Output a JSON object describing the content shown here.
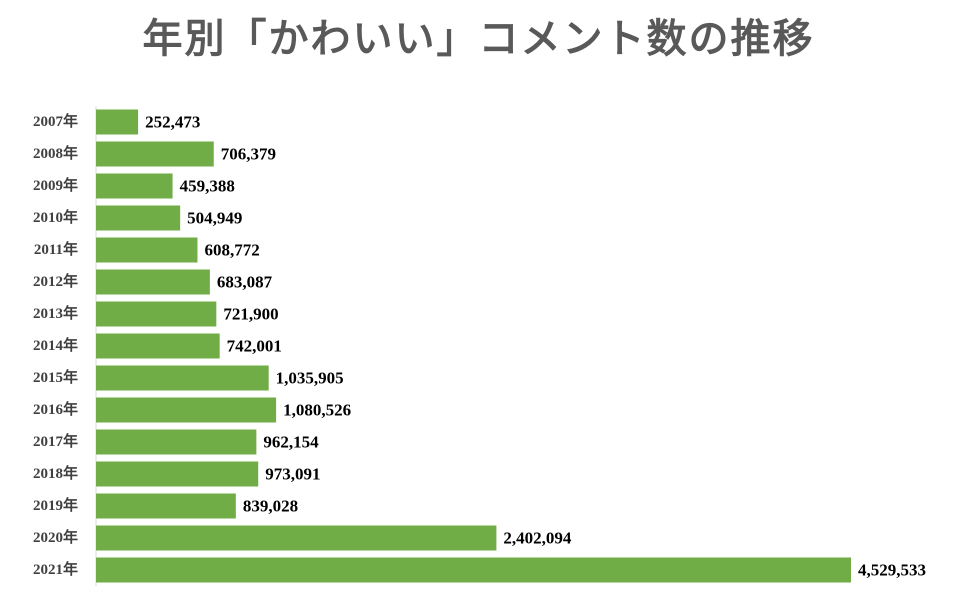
{
  "chart_data": {
    "type": "bar",
    "orientation": "horizontal",
    "title": "年別「かわいい」コメント数の推移",
    "categories": [
      "2007年",
      "2008年",
      "2009年",
      "2010年",
      "2011年",
      "2012年",
      "2013年",
      "2014年",
      "2015年",
      "2016年",
      "2017年",
      "2018年",
      "2019年",
      "2020年",
      "2021年"
    ],
    "values": [
      252473,
      706379,
      459388,
      504949,
      608772,
      683087,
      721900,
      742001,
      1035905,
      1080526,
      962154,
      973091,
      839028,
      2402094,
      4529533
    ],
    "value_labels": [
      "252,473",
      "706,379",
      "459,388",
      "504,949",
      "608,772",
      "683,087",
      "721,900",
      "742,001",
      "1,035,905",
      "1,080,526",
      "962,154",
      "973,091",
      "839,028",
      "2,402,094",
      "4,529,533"
    ],
    "xlabel": "",
    "ylabel": "",
    "xlim": [
      0,
      4529533
    ],
    "grid": false,
    "legend": "none",
    "bar_color": "#70ad47"
  }
}
